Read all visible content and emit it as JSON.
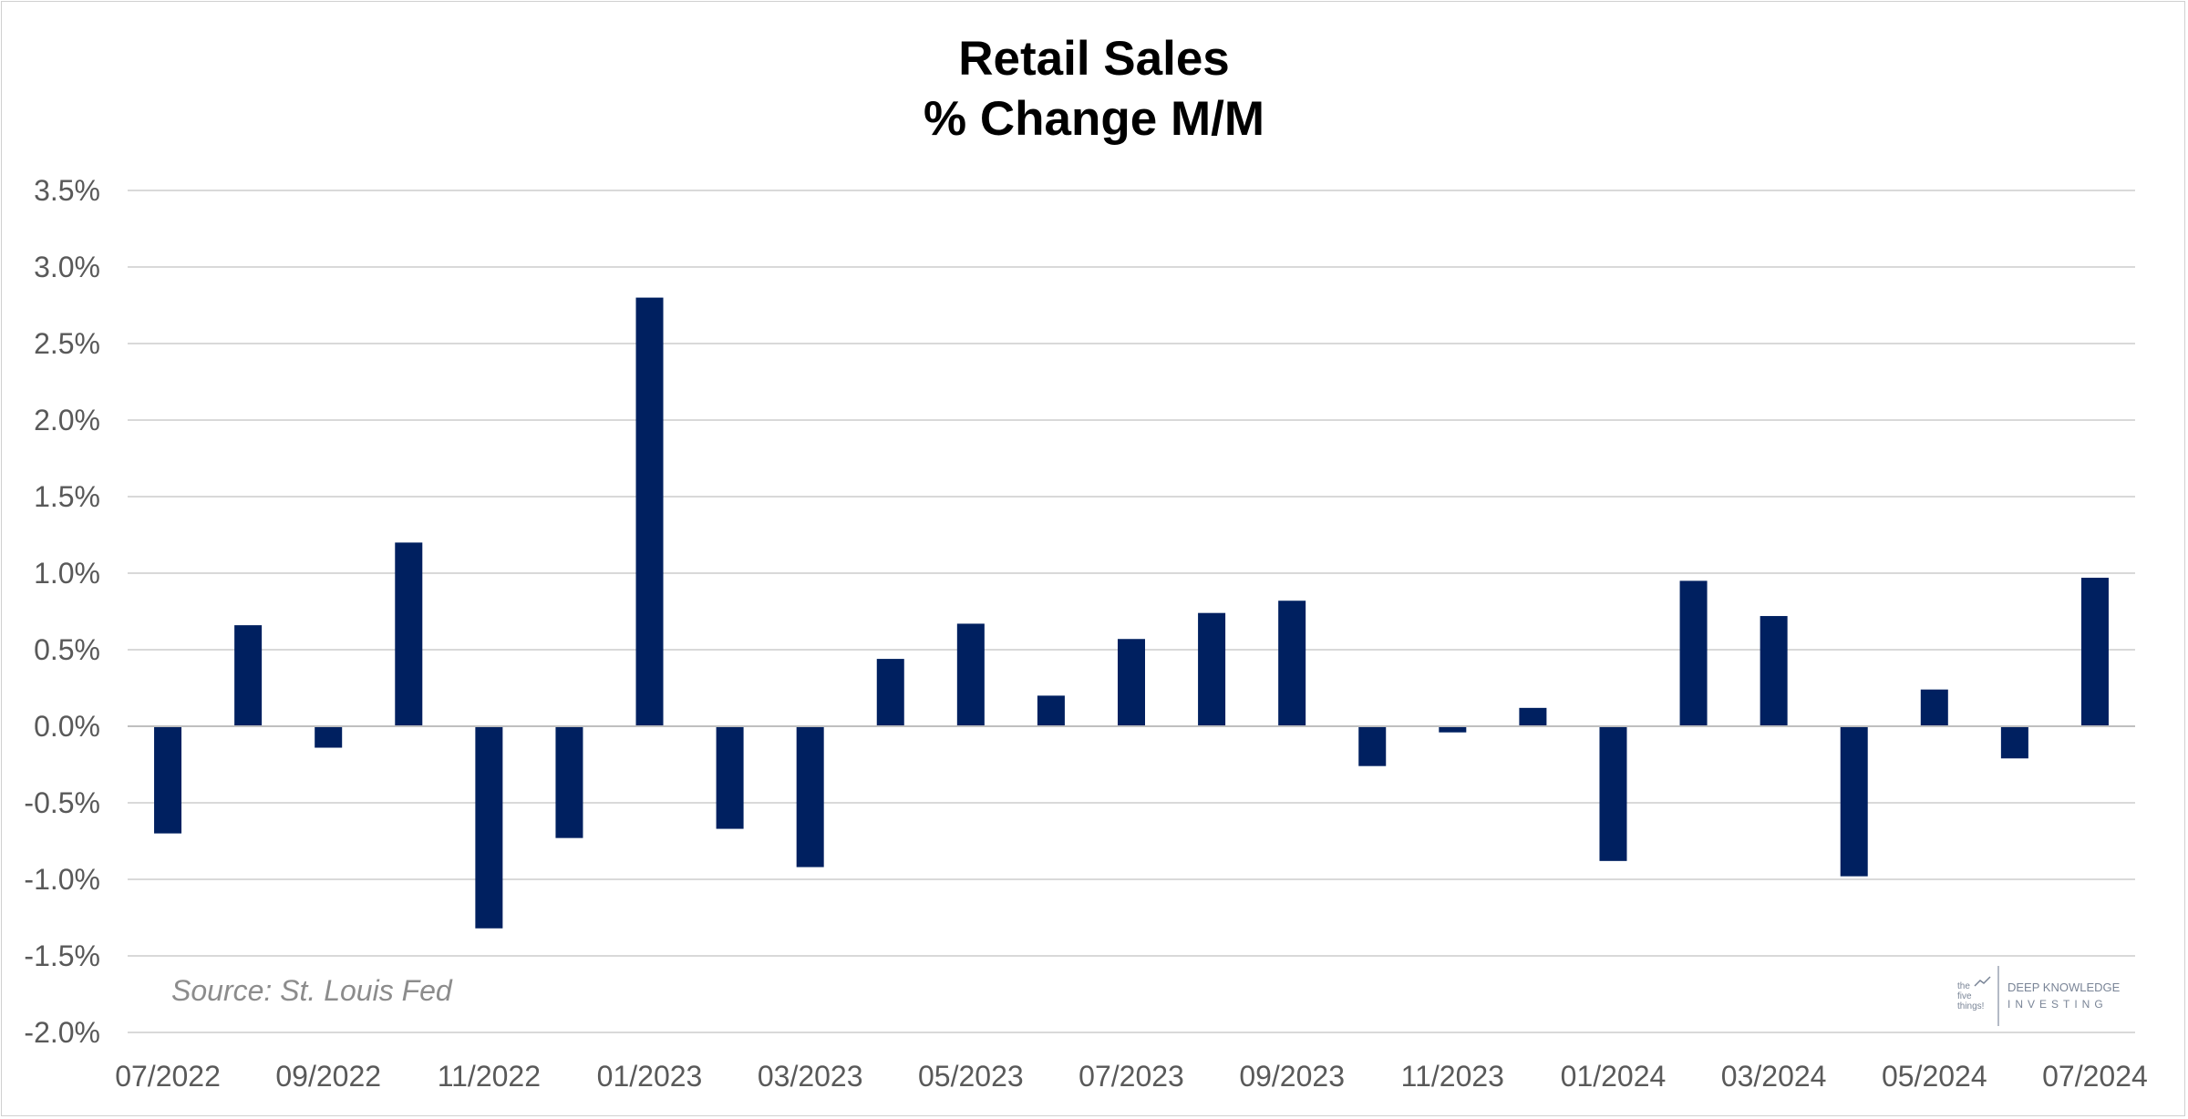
{
  "chart_data": {
    "type": "bar",
    "title": [
      "Retail Sales",
      "% Change M/M"
    ],
    "xlabel": "",
    "ylabel": "",
    "ylim": [
      -2.0,
      3.5
    ],
    "yticks": [
      "3.5%",
      "3.0%",
      "2.5%",
      "2.0%",
      "1.5%",
      "1.0%",
      "0.5%",
      "0.0%",
      "-0.5%",
      "-1.0%",
      "-1.5%",
      "-2.0%"
    ],
    "categories": [
      "07/2022",
      "08/2022",
      "09/2022",
      "10/2022",
      "11/2022",
      "12/2022",
      "01/2023",
      "02/2023",
      "03/2023",
      "04/2023",
      "05/2023",
      "06/2023",
      "07/2023",
      "08/2023",
      "09/2023",
      "10/2023",
      "11/2023",
      "12/2023",
      "01/2024",
      "02/2024",
      "03/2024",
      "04/2024",
      "05/2024",
      "06/2024",
      "07/2024"
    ],
    "xtick_labels": [
      "07/2022",
      "09/2022",
      "11/2022",
      "01/2023",
      "03/2023",
      "05/2023",
      "07/2023",
      "09/2023",
      "11/2023",
      "01/2024",
      "03/2024",
      "05/2024",
      "07/2024"
    ],
    "values": [
      -0.7,
      0.66,
      -0.14,
      1.2,
      -1.32,
      -0.73,
      2.8,
      -0.67,
      -0.92,
      0.44,
      0.67,
      0.2,
      0.57,
      0.74,
      0.82,
      -0.26,
      -0.04,
      0.12,
      -0.88,
      0.95,
      0.72,
      -0.98,
      0.24,
      -0.21,
      0.97
    ],
    "grid": true,
    "bar_color": "#002060",
    "annotations": [
      "Source: St. Louis Fed"
    ]
  },
  "branding": {
    "logo_line1": "the",
    "logo_line2": "five",
    "logo_line3": "things!",
    "name_line1": "DEEP KNOWLEDGE",
    "name_line2": "INVESTING"
  }
}
